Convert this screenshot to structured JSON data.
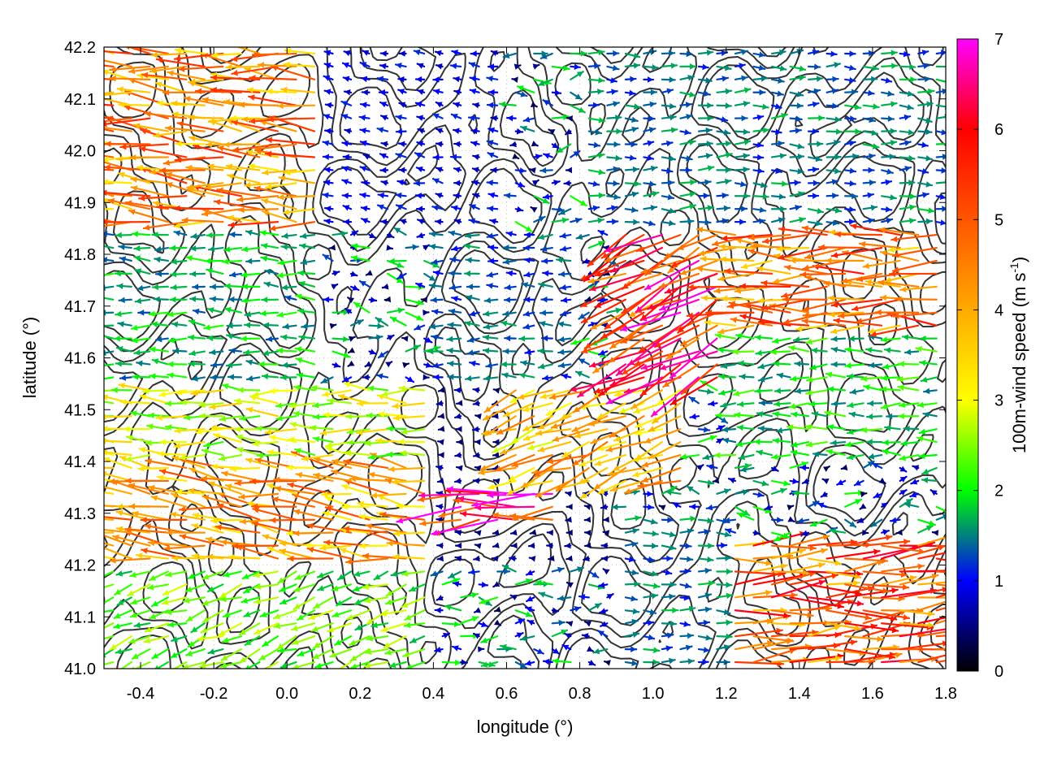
{
  "chart_data": {
    "type": "quiver",
    "title": "",
    "xlabel": "longitude (°)",
    "ylabel": "latitude (°)",
    "xlim": [
      -0.5,
      1.8
    ],
    "ylim": [
      41.0,
      42.2
    ],
    "xticks": [
      -0.4,
      -0.2,
      0.0,
      0.2,
      0.4,
      0.6,
      0.8,
      1.0,
      1.2,
      1.4,
      1.6,
      1.8
    ],
    "xtick_labels": [
      "-0.4",
      "-0.2",
      "0.0",
      "0.2",
      "0.4",
      "0.6",
      "0.8",
      "1.0",
      "1.2",
      "1.4",
      "1.6",
      "1.8"
    ],
    "yticks": [
      41.0,
      41.1,
      41.2,
      41.3,
      41.4,
      41.5,
      41.6,
      41.7,
      41.8,
      41.9,
      42.0,
      42.1,
      42.2
    ],
    "ytick_labels": [
      "41.0",
      "41.1",
      "41.2",
      "41.3",
      "41.4",
      "41.5",
      "41.6",
      "41.7",
      "41.8",
      "41.9",
      "42.0",
      "42.1",
      "42.2"
    ],
    "grid": true,
    "colorbar": {
      "label_main": "100m-wind speed (m s",
      "label_sup": "-1",
      "label_end": ")",
      "range": [
        0,
        7
      ],
      "ticks": [
        0,
        1,
        2,
        3,
        4,
        5,
        6,
        7
      ],
      "tick_labels": [
        "0",
        "1",
        "2",
        "3",
        "4",
        "5",
        "6",
        "7"
      ],
      "stops": [
        {
          "v": 0,
          "color": "#000000"
        },
        {
          "v": 1,
          "color": "#0000ff"
        },
        {
          "v": 2,
          "color": "#00ff00"
        },
        {
          "v": 3,
          "color": "#ffff00"
        },
        {
          "v": 4,
          "color": "#ffaa00"
        },
        {
          "v": 5,
          "color": "#ff5500"
        },
        {
          "v": 6,
          "color": "#ff0000"
        },
        {
          "v": 7,
          "color": "#ff00ff"
        }
      ]
    },
    "contour_color": "#333333",
    "wind_regions": [
      {
        "lon": [
          -0.5,
          0.1
        ],
        "lat": [
          41.85,
          42.2
        ],
        "u": -4.5,
        "v": 0.4,
        "speed": 4.6
      },
      {
        "lon": [
          -0.5,
          0.1
        ],
        "lat": [
          41.55,
          41.85
        ],
        "u": -1.8,
        "v": 0.1,
        "speed": 1.8
      },
      {
        "lon": [
          -0.5,
          0.4
        ],
        "lat": [
          41.4,
          41.55
        ],
        "u": -3.0,
        "v": 0.1,
        "speed": 3.0
      },
      {
        "lon": [
          -0.5,
          0.4
        ],
        "lat": [
          41.2,
          41.4
        ],
        "u": -4.2,
        "v": 0.6,
        "speed": 4.3
      },
      {
        "lon": [
          -0.5,
          0.4
        ],
        "lat": [
          41.0,
          41.2
        ],
        "u": -2.2,
        "v": -0.8,
        "speed": 2.4
      },
      {
        "lon": [
          0.1,
          0.6
        ],
        "lat": [
          41.85,
          42.2
        ],
        "u": -1.0,
        "v": 0.2,
        "speed": 1.0
      },
      {
        "lon": [
          0.4,
          0.8
        ],
        "lat": [
          41.55,
          41.85
        ],
        "u": -1.4,
        "v": 0.0,
        "speed": 1.4
      },
      {
        "lon": [
          0.4,
          0.9
        ],
        "lat": [
          41.2,
          41.55
        ],
        "u": -0.6,
        "v": 0.0,
        "speed": 0.6
      },
      {
        "lon": [
          0.45,
          0.75
        ],
        "lat": [
          41.28,
          41.36
        ],
        "u": -5.5,
        "v": -0.5,
        "speed": 6.4
      },
      {
        "lon": [
          0.9,
          1.3
        ],
        "lat": [
          41.55,
          41.85
        ],
        "u": -4.8,
        "v": -2.4,
        "speed": 5.8
      },
      {
        "lon": [
          0.6,
          1.1
        ],
        "lat": [
          41.35,
          41.55
        ],
        "u": -3.6,
        "v": -1.4,
        "speed": 4.0
      },
      {
        "lon": [
          1.2,
          1.8
        ],
        "lat": [
          41.65,
          41.85
        ],
        "u": -4.2,
        "v": 0.0,
        "speed": 4.8
      },
      {
        "lon": [
          1.2,
          1.8
        ],
        "lat": [
          41.4,
          41.65
        ],
        "u": -2.0,
        "v": 0.0,
        "speed": 2.0
      },
      {
        "lon": [
          1.2,
          1.8
        ],
        "lat": [
          41.0,
          41.25
        ],
        "u": 4.5,
        "v": 0.3,
        "speed": 5.2
      },
      {
        "lon": [
          0.8,
          1.8
        ],
        "lat": [
          41.85,
          42.2
        ],
        "u": 1.2,
        "v": 0.0,
        "speed": 1.5
      },
      {
        "lon": [
          0.9,
          1.2
        ],
        "lat": [
          41.0,
          41.3
        ],
        "u": 1.5,
        "v": 0.0,
        "speed": 1.5
      }
    ]
  }
}
